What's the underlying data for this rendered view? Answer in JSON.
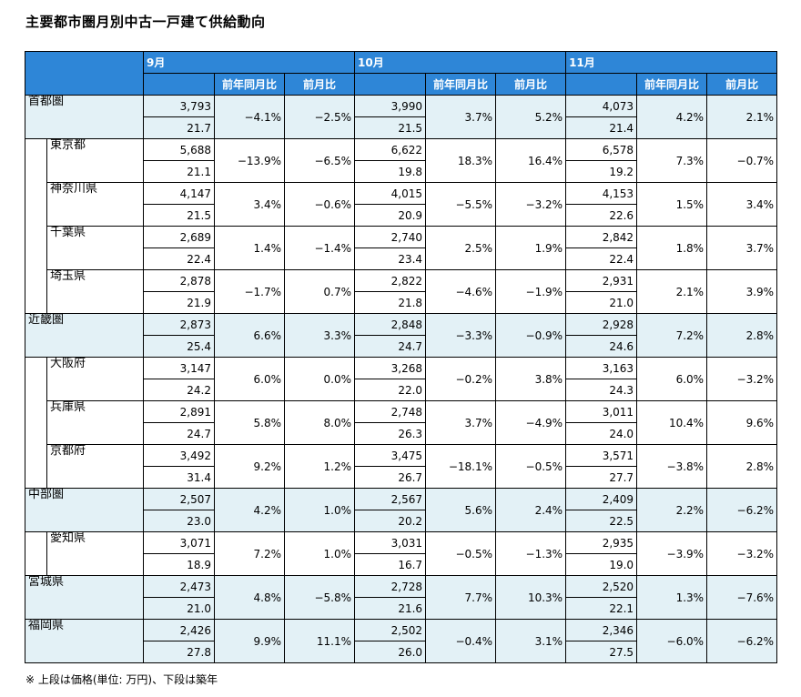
{
  "title": "主要都市圏月別中古一戸建て供給動向",
  "footnote": "※ 上段は価格(単位: 万円)、下段は築年",
  "months": [
    "9月",
    "10月",
    "11月"
  ],
  "sub_headers": {
    "yoy": "前年同月比",
    "mom": "前月比"
  },
  "rows": [
    {
      "name": "首都圏",
      "level": 0,
      "data": [
        {
          "price": "3,793",
          "age": "21.7",
          "yoy": "−4.1%",
          "mom": "−2.5%"
        },
        {
          "price": "3,990",
          "age": "21.5",
          "yoy": "3.7%",
          "mom": "5.2%"
        },
        {
          "price": "4,073",
          "age": "21.4",
          "yoy": "4.2%",
          "mom": "2.1%"
        }
      ]
    },
    {
      "name": "東京都",
      "level": 1,
      "data": [
        {
          "price": "5,688",
          "age": "21.1",
          "yoy": "−13.9%",
          "mom": "−6.5%"
        },
        {
          "price": "6,622",
          "age": "19.8",
          "yoy": "18.3%",
          "mom": "16.4%"
        },
        {
          "price": "6,578",
          "age": "19.2",
          "yoy": "7.3%",
          "mom": "−0.7%"
        }
      ]
    },
    {
      "name": "神奈川県",
      "level": 1,
      "data": [
        {
          "price": "4,147",
          "age": "21.5",
          "yoy": "3.4%",
          "mom": "−0.6%"
        },
        {
          "price": "4,015",
          "age": "20.9",
          "yoy": "−5.5%",
          "mom": "−3.2%"
        },
        {
          "price": "4,153",
          "age": "22.6",
          "yoy": "1.5%",
          "mom": "3.4%"
        }
      ]
    },
    {
      "name": "千葉県",
      "level": 1,
      "data": [
        {
          "price": "2,689",
          "age": "22.4",
          "yoy": "1.4%",
          "mom": "−1.4%"
        },
        {
          "price": "2,740",
          "age": "23.4",
          "yoy": "2.5%",
          "mom": "1.9%"
        },
        {
          "price": "2,842",
          "age": "22.4",
          "yoy": "1.8%",
          "mom": "3.7%"
        }
      ]
    },
    {
      "name": "埼玉県",
      "level": 1,
      "data": [
        {
          "price": "2,878",
          "age": "21.9",
          "yoy": "−1.7%",
          "mom": "0.7%"
        },
        {
          "price": "2,822",
          "age": "21.8",
          "yoy": "−4.6%",
          "mom": "−1.9%"
        },
        {
          "price": "2,931",
          "age": "21.0",
          "yoy": "2.1%",
          "mom": "3.9%"
        }
      ]
    },
    {
      "name": "近畿圏",
      "level": 0,
      "data": [
        {
          "price": "2,873",
          "age": "25.4",
          "yoy": "6.6%",
          "mom": "3.3%"
        },
        {
          "price": "2,848",
          "age": "24.7",
          "yoy": "−3.3%",
          "mom": "−0.9%"
        },
        {
          "price": "2,928",
          "age": "24.6",
          "yoy": "7.2%",
          "mom": "2.8%"
        }
      ]
    },
    {
      "name": "大阪府",
      "level": 1,
      "data": [
        {
          "price": "3,147",
          "age": "24.2",
          "yoy": "6.0%",
          "mom": "0.0%"
        },
        {
          "price": "3,268",
          "age": "22.0",
          "yoy": "−0.2%",
          "mom": "3.8%"
        },
        {
          "price": "3,163",
          "age": "24.3",
          "yoy": "6.0%",
          "mom": "−3.2%"
        }
      ]
    },
    {
      "name": "兵庫県",
      "level": 1,
      "data": [
        {
          "price": "2,891",
          "age": "24.7",
          "yoy": "5.8%",
          "mom": "8.0%"
        },
        {
          "price": "2,748",
          "age": "26.3",
          "yoy": "3.7%",
          "mom": "−4.9%"
        },
        {
          "price": "3,011",
          "age": "24.0",
          "yoy": "10.4%",
          "mom": "9.6%"
        }
      ]
    },
    {
      "name": "京都府",
      "level": 1,
      "data": [
        {
          "price": "3,492",
          "age": "31.4",
          "yoy": "9.2%",
          "mom": "1.2%"
        },
        {
          "price": "3,475",
          "age": "26.7",
          "yoy": "−18.1%",
          "mom": "−0.5%"
        },
        {
          "price": "3,571",
          "age": "27.7",
          "yoy": "−3.8%",
          "mom": "2.8%"
        }
      ]
    },
    {
      "name": "中部圏",
      "level": 0,
      "data": [
        {
          "price": "2,507",
          "age": "23.0",
          "yoy": "4.2%",
          "mom": "1.0%"
        },
        {
          "price": "2,567",
          "age": "20.2",
          "yoy": "5.6%",
          "mom": "2.4%"
        },
        {
          "price": "2,409",
          "age": "22.5",
          "yoy": "2.2%",
          "mom": "−6.2%"
        }
      ]
    },
    {
      "name": "愛知県",
      "level": 1,
      "data": [
        {
          "price": "3,071",
          "age": "18.9",
          "yoy": "7.2%",
          "mom": "1.0%"
        },
        {
          "price": "3,031",
          "age": "16.7",
          "yoy": "−0.5%",
          "mom": "−1.3%"
        },
        {
          "price": "2,935",
          "age": "19.0",
          "yoy": "−3.9%",
          "mom": "−3.2%"
        }
      ]
    },
    {
      "name": "宮城県",
      "level": 0,
      "data": [
        {
          "price": "2,473",
          "age": "21.0",
          "yoy": "4.8%",
          "mom": "−5.8%"
        },
        {
          "price": "2,728",
          "age": "21.6",
          "yoy": "7.7%",
          "mom": "10.3%"
        },
        {
          "price": "2,520",
          "age": "22.1",
          "yoy": "1.3%",
          "mom": "−7.6%"
        }
      ]
    },
    {
      "name": "福岡県",
      "level": 0,
      "data": [
        {
          "price": "2,426",
          "age": "27.8",
          "yoy": "9.9%",
          "mom": "11.1%"
        },
        {
          "price": "2,502",
          "age": "26.0",
          "yoy": "−0.4%",
          "mom": "3.1%"
        },
        {
          "price": "2,346",
          "age": "27.5",
          "yoy": "−6.0%",
          "mom": "−6.2%"
        }
      ]
    }
  ],
  "colors": {
    "header_bg": "#2e86d7",
    "metro_row_bg": "#e3f1f6",
    "prefecture_row_bg": "#ffffff"
  }
}
